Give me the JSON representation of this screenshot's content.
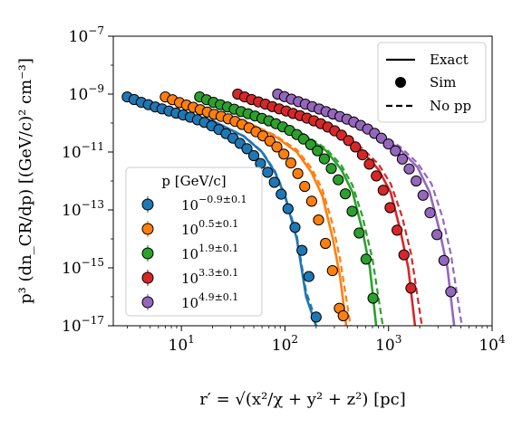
{
  "chart_data": {
    "type": "scatter",
    "xlabel": "r′ = √(x²/χ + y² + z²) [pc]",
    "ylabel": "p³ (dn_CR/dp) [(GeV/c)² cm⁻³]",
    "x_scale": "log",
    "y_scale": "log",
    "xlim": [
      2.2,
      10000
    ],
    "ylim": [
      1e-17,
      1e-07
    ],
    "x_ticks": [
      {
        "value": 10,
        "base": "10",
        "exp": "1"
      },
      {
        "value": 100,
        "base": "10",
        "exp": "2"
      },
      {
        "value": 1000,
        "base": "10",
        "exp": "3"
      },
      {
        "value": 10000,
        "base": "10",
        "exp": "4"
      }
    ],
    "y_ticks": [
      {
        "value": 1e-07,
        "base": "10",
        "exp": "−7"
      },
      {
        "value": 1e-09,
        "base": "10",
        "exp": "−9"
      },
      {
        "value": 1e-11,
        "base": "10",
        "exp": "−11"
      },
      {
        "value": 1e-13,
        "base": "10",
        "exp": "−13"
      },
      {
        "value": 1e-15,
        "base": "10",
        "exp": "−15"
      },
      {
        "value": 1e-17,
        "base": "10",
        "exp": "−17"
      }
    ],
    "legend_styles": {
      "position": "top-right",
      "items": [
        {
          "label": "Exact",
          "style": "solid-line"
        },
        {
          "label": "Sim",
          "style": "marker"
        },
        {
          "label": "No pp",
          "style": "dashed-line"
        }
      ]
    },
    "legend_momentum": {
      "position": "center-left",
      "title": "p [GeV/c]",
      "items": [
        {
          "base": "10",
          "exp": "−0.9±0.1"
        },
        {
          "base": "10",
          "exp": "0.5±0.1"
        },
        {
          "base": "10",
          "exp": "1.9±0.1"
        },
        {
          "base": "10",
          "exp": "3.3±0.1"
        },
        {
          "base": "10",
          "exp": "4.9±0.1"
        }
      ]
    },
    "series": [
      {
        "color": "#1f77b4",
        "exact": [
          [
            3,
            8e-10
          ],
          [
            10,
            2.5e-10
          ],
          [
            20,
            1.2e-10
          ],
          [
            40,
            3.5e-11
          ],
          [
            60,
            1e-11
          ],
          [
            80,
            2e-12
          ],
          [
            100,
            3e-13
          ],
          [
            130,
            1e-14
          ],
          [
            160,
            1e-16
          ],
          [
            200,
            1e-17
          ]
        ],
        "nopp": [
          [
            3,
            8e-10
          ],
          [
            10,
            2.5e-10
          ],
          [
            20,
            1.2e-10
          ],
          [
            40,
            3.6e-11
          ],
          [
            60,
            1.05e-11
          ],
          [
            80,
            2.2e-12
          ],
          [
            100,
            3.4e-13
          ],
          [
            130,
            1.3e-14
          ],
          [
            160,
            1.5e-16
          ],
          [
            200,
            1.5e-17
          ]
        ],
        "sim": [
          [
            3.0,
            8e-10
          ],
          [
            3.5,
            6.5e-10
          ],
          [
            4.1,
            5.2e-10
          ],
          [
            4.8,
            4.3e-10
          ],
          [
            5.6,
            3.6e-10
          ],
          [
            6.5,
            3.1e-10
          ],
          [
            7.6,
            2.6e-10
          ],
          [
            8.9,
            2.2e-10
          ],
          [
            10.4,
            1.9e-10
          ],
          [
            12.2,
            1.6e-10
          ],
          [
            14.3,
            1.3e-10
          ],
          [
            16.7,
            1.05e-10
          ],
          [
            19.6,
            8e-11
          ],
          [
            23,
            6e-11
          ],
          [
            27,
            4.3e-11
          ],
          [
            31.5,
            3e-11
          ],
          [
            36.8,
            2e-11
          ],
          [
            43,
            1.3e-11
          ],
          [
            50,
            7.5e-12
          ],
          [
            58,
            4e-12
          ],
          [
            68,
            2e-12
          ],
          [
            79,
            9e-13
          ],
          [
            92,
            3.5e-13
          ],
          [
            107,
            1.1e-13
          ],
          [
            125,
            2.5e-14
          ],
          [
            146,
            4e-15
          ],
          [
            170,
            5e-16
          ],
          [
            200,
            2e-17
          ]
        ]
      },
      {
        "color": "#ff7f0e",
        "exact": [
          [
            7,
            8e-10
          ],
          [
            20,
            2.5e-10
          ],
          [
            40,
            1.2e-10
          ],
          [
            80,
            3.5e-11
          ],
          [
            130,
            1e-11
          ],
          [
            180,
            2e-12
          ],
          [
            230,
            3e-13
          ],
          [
            290,
            1e-14
          ],
          [
            340,
            5e-16
          ],
          [
            390,
            1e-17
          ]
        ],
        "nopp": [
          [
            7,
            8e-10
          ],
          [
            20,
            2.5e-10
          ],
          [
            40,
            1.2e-10
          ],
          [
            80,
            3.8e-11
          ],
          [
            130,
            1.2e-11
          ],
          [
            180,
            2.8e-12
          ],
          [
            230,
            5e-13
          ],
          [
            290,
            3e-14
          ],
          [
            340,
            2e-15
          ],
          [
            430,
            1e-17
          ]
        ],
        "sim": [
          [
            7,
            8e-10
          ],
          [
            8.2,
            6.4e-10
          ],
          [
            9.6,
            5.1e-10
          ],
          [
            11.2,
            4.2e-10
          ],
          [
            13,
            3.5e-10
          ],
          [
            15.2,
            2.9e-10
          ],
          [
            17.8,
            2.4e-10
          ],
          [
            20.7,
            2e-10
          ],
          [
            24.2,
            1.7e-10
          ],
          [
            28.3,
            1.4e-10
          ],
          [
            33,
            1.15e-10
          ],
          [
            38.5,
            9e-11
          ],
          [
            45,
            6.8e-11
          ],
          [
            52.5,
            5e-11
          ],
          [
            61.3,
            3.6e-11
          ],
          [
            71.5,
            2.4e-11
          ],
          [
            83.5,
            1.5e-11
          ],
          [
            97.5,
            8.5e-12
          ],
          [
            114,
            4.2e-12
          ],
          [
            133,
            1.8e-12
          ],
          [
            155,
            6.5e-13
          ],
          [
            181,
            2e-13
          ],
          [
            211,
            4.5e-14
          ],
          [
            246,
            7e-15
          ],
          [
            287,
            8e-16
          ],
          [
            335,
            4e-17
          ],
          [
            365,
            2.2e-17
          ]
        ]
      },
      {
        "color": "#2ca02c",
        "exact": [
          [
            15,
            8e-10
          ],
          [
            40,
            2.7e-10
          ],
          [
            80,
            1.2e-10
          ],
          [
            150,
            4e-11
          ],
          [
            250,
            1.1e-11
          ],
          [
            350,
            2.5e-12
          ],
          [
            450,
            4e-13
          ],
          [
            560,
            2e-14
          ],
          [
            660,
            1e-15
          ],
          [
            760,
            1e-17
          ]
        ],
        "nopp": [
          [
            15,
            8e-10
          ],
          [
            40,
            2.7e-10
          ],
          [
            80,
            1.2e-10
          ],
          [
            150,
            4.3e-11
          ],
          [
            250,
            1.3e-11
          ],
          [
            350,
            3.5e-12
          ],
          [
            450,
            7e-13
          ],
          [
            560,
            6e-14
          ],
          [
            700,
            2e-15
          ],
          [
            880,
            1e-17
          ]
        ],
        "sim": [
          [
            15,
            8e-10
          ],
          [
            17.5,
            6.4e-10
          ],
          [
            20.4,
            5.2e-10
          ],
          [
            23.8,
            4.3e-10
          ],
          [
            27.8,
            3.6e-10
          ],
          [
            32.4,
            3e-10
          ],
          [
            37.8,
            2.5e-10
          ],
          [
            44.1,
            2.1e-10
          ],
          [
            51.5,
            1.75e-10
          ],
          [
            60,
            1.45e-10
          ],
          [
            70,
            1.2e-10
          ],
          [
            81.7,
            9.5e-11
          ],
          [
            95.3,
            7.4e-11
          ],
          [
            111,
            5.6e-11
          ],
          [
            130,
            4e-11
          ],
          [
            151,
            2.8e-11
          ],
          [
            177,
            1.8e-11
          ],
          [
            206,
            1.1e-11
          ],
          [
            240,
            5.8e-12
          ],
          [
            280,
            2.7e-12
          ],
          [
            327,
            1.1e-12
          ],
          [
            382,
            3.6e-13
          ],
          [
            445,
            9e-14
          ],
          [
            520,
            1.6e-14
          ],
          [
            607,
            2e-15
          ],
          [
            708,
            9e-17
          ]
        ]
      },
      {
        "color": "#d62728",
        "exact": [
          [
            35,
            8e-10
          ],
          [
            90,
            2.7e-10
          ],
          [
            180,
            1.2e-10
          ],
          [
            350,
            4e-11
          ],
          [
            550,
            1.1e-11
          ],
          [
            800,
            2.5e-12
          ],
          [
            1050,
            4e-13
          ],
          [
            1300,
            2e-14
          ],
          [
            1550,
            1e-15
          ],
          [
            1800,
            1e-17
          ]
        ],
        "nopp": [
          [
            35,
            8e-10
          ],
          [
            90,
            2.7e-10
          ],
          [
            180,
            1.2e-10
          ],
          [
            350,
            4.4e-11
          ],
          [
            550,
            1.4e-11
          ],
          [
            800,
            3.8e-12
          ],
          [
            1050,
            8e-13
          ],
          [
            1350,
            6e-14
          ],
          [
            1650,
            3e-15
          ],
          [
            2100,
            1e-17
          ]
        ],
        "sim": [
          [
            35,
            1e-09
          ],
          [
            40.8,
            8e-10
          ],
          [
            47.6,
            6.5e-10
          ],
          [
            55.5,
            5.4e-10
          ],
          [
            64.7,
            4.5e-10
          ],
          [
            75.5,
            3.7e-10
          ],
          [
            88,
            3.1e-10
          ],
          [
            102.7,
            2.6e-10
          ],
          [
            119.8,
            2.15e-10
          ],
          [
            139.8,
            1.8e-10
          ],
          [
            163,
            1.48e-10
          ],
          [
            190,
            1.2e-10
          ],
          [
            222,
            9.5e-11
          ],
          [
            259,
            7.3e-11
          ],
          [
            302,
            5.4e-11
          ],
          [
            352,
            3.8e-11
          ],
          [
            411,
            2.5e-11
          ],
          [
            479,
            1.5e-11
          ],
          [
            559,
            8e-12
          ],
          [
            652,
            3.8e-12
          ],
          [
            761,
            1.5e-12
          ],
          [
            887,
            4.8e-13
          ],
          [
            1035,
            1.2e-13
          ],
          [
            1207,
            2e-14
          ],
          [
            1408,
            2.8e-15
          ],
          [
            1643,
            2e-16
          ]
        ]
      },
      {
        "color": "#9467bd",
        "exact": [
          [
            85,
            1e-09
          ],
          [
            200,
            3e-10
          ],
          [
            400,
            1.3e-10
          ],
          [
            800,
            4.2e-11
          ],
          [
            1300,
            1.2e-11
          ],
          [
            1900,
            3e-12
          ],
          [
            2500,
            4e-13
          ],
          [
            3100,
            2e-14
          ],
          [
            3700,
            1e-15
          ],
          [
            4300,
            1e-17
          ]
        ],
        "nopp": [
          [
            85,
            1e-09
          ],
          [
            200,
            3e-10
          ],
          [
            400,
            1.3e-10
          ],
          [
            800,
            4.6e-11
          ],
          [
            1300,
            1.5e-11
          ],
          [
            1900,
            4.2e-12
          ],
          [
            2600,
            8e-13
          ],
          [
            3300,
            6e-14
          ],
          [
            4000,
            3e-15
          ],
          [
            5100,
            1e-17
          ]
        ],
        "sim": [
          [
            85,
            1e-09
          ],
          [
            99,
            8.2e-10
          ],
          [
            115.6,
            6.7e-10
          ],
          [
            134.8,
            5.5e-10
          ],
          [
            157.3,
            4.5e-10
          ],
          [
            183.5,
            3.7e-10
          ],
          [
            214,
            3.05e-10
          ],
          [
            249.6,
            2.5e-10
          ],
          [
            291,
            2.05e-10
          ],
          [
            339.6,
            1.68e-10
          ],
          [
            396.2,
            1.36e-10
          ],
          [
            462,
            1.08e-10
          ],
          [
            539,
            8.3e-11
          ],
          [
            629,
            6.2e-11
          ],
          [
            733,
            4.4e-11
          ],
          [
            855,
            3e-11
          ],
          [
            998,
            1.9e-11
          ],
          [
            1164,
            1.1e-11
          ],
          [
            1358,
            5.7e-12
          ],
          [
            1584,
            2.6e-12
          ],
          [
            1848,
            1e-12
          ],
          [
            2156,
            3.2e-13
          ],
          [
            2515,
            8e-14
          ],
          [
            2934,
            1.4e-14
          ],
          [
            3422,
            1.8e-15
          ],
          [
            3992,
            1.5e-16
          ]
        ]
      }
    ]
  }
}
